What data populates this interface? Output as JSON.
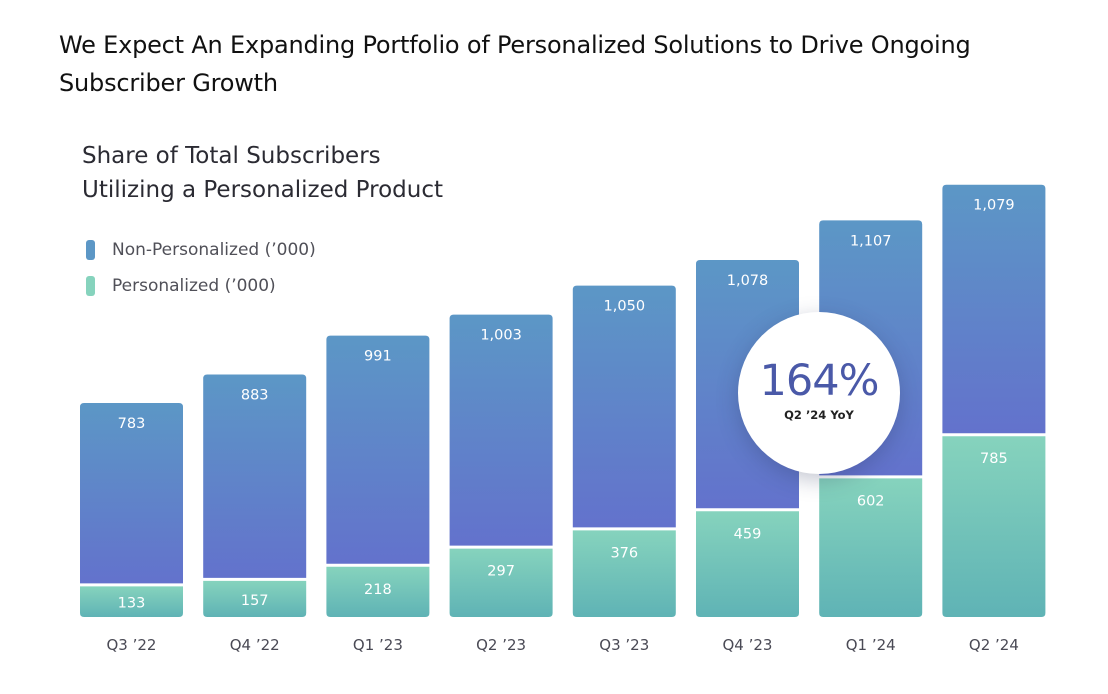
{
  "page": {
    "title": "We Expect An Expanding Portfolio of Personalized Solutions to Drive Ongoing Subscriber Growth"
  },
  "callout": {
    "value": "164%",
    "label": "Q2 ’24 YoY"
  },
  "chart_data": {
    "type": "bar",
    "stacked": true,
    "title_lines": [
      "Share of Total Subscribers",
      "Utilizing a Personalized Product"
    ],
    "categories": [
      "Q3 ’22",
      "Q4 ’22",
      "Q1 ’23",
      "Q2 ’23",
      "Q3 ’23",
      "Q4 ’23",
      "Q1 ’24",
      "Q2 ’24"
    ],
    "series": [
      {
        "name": "Personalized (’000)",
        "values": [
          133,
          157,
          218,
          297,
          376,
          459,
          602,
          785
        ],
        "labels": [
          "133",
          "157",
          "218",
          "297",
          "376",
          "459",
          "602",
          "785"
        ],
        "color_top": "#86d3bd",
        "color_bottom": "#5fb3b5"
      },
      {
        "name": "Non-Personalized (’000)",
        "values": [
          783,
          883,
          991,
          1003,
          1050,
          1078,
          1107,
          1079
        ],
        "labels": [
          "783",
          "883",
          "991",
          "1,003",
          "1,050",
          "1,078",
          "1,107",
          "1,079"
        ],
        "color_top": "#5c97c6",
        "color_bottom": "#6372cc"
      }
    ],
    "legend_position": "top-left",
    "grid": false,
    "xlabel": "",
    "ylabel": "",
    "ylim": [
      0,
      1864
    ]
  }
}
